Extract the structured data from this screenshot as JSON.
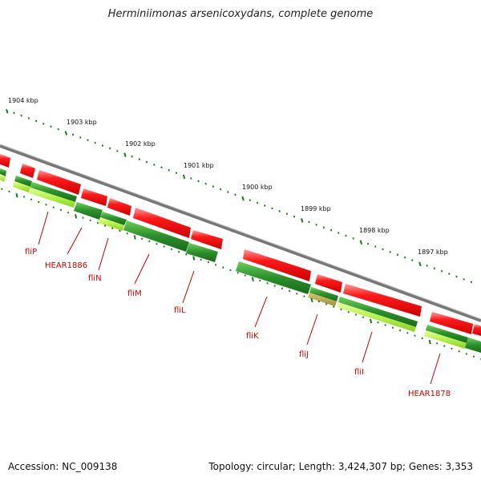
{
  "title": "Herminiimonas arsenicoxydans, complete genome",
  "accession": "Accession: NC_009138",
  "stats": "Topology: circular; Length: 3,424,307 bp; Genes: 3,353",
  "colors": {
    "backbone": "#888888",
    "forward_gene": "#ee0000",
    "reverse_gene": "#2a8a2a",
    "reverse_gene_light": "#aef03a",
    "tick": "#1a7a1a",
    "label": "#cc0000"
  },
  "scale_labels": [
    {
      "kbp": 1904,
      "text": "1904 kbp"
    },
    {
      "kbp": 1903,
      "text": "1903 kbp"
    },
    {
      "kbp": 1902,
      "text": "1902 kbp"
    },
    {
      "kbp": 1901,
      "text": "1901 kbp"
    },
    {
      "kbp": 1900,
      "text": "1900 kbp"
    },
    {
      "kbp": 1899,
      "text": "1899 kbp"
    },
    {
      "kbp": 1898,
      "text": "1898 kbp"
    },
    {
      "kbp": 1897,
      "text": "1897 kbp"
    }
  ],
  "gene_labels": [
    "fliP",
    "HEAR1886",
    "fliN",
    "fliM",
    "fliL",
    "fliK",
    "fliJ",
    "fliI",
    "HEAR1878"
  ]
}
